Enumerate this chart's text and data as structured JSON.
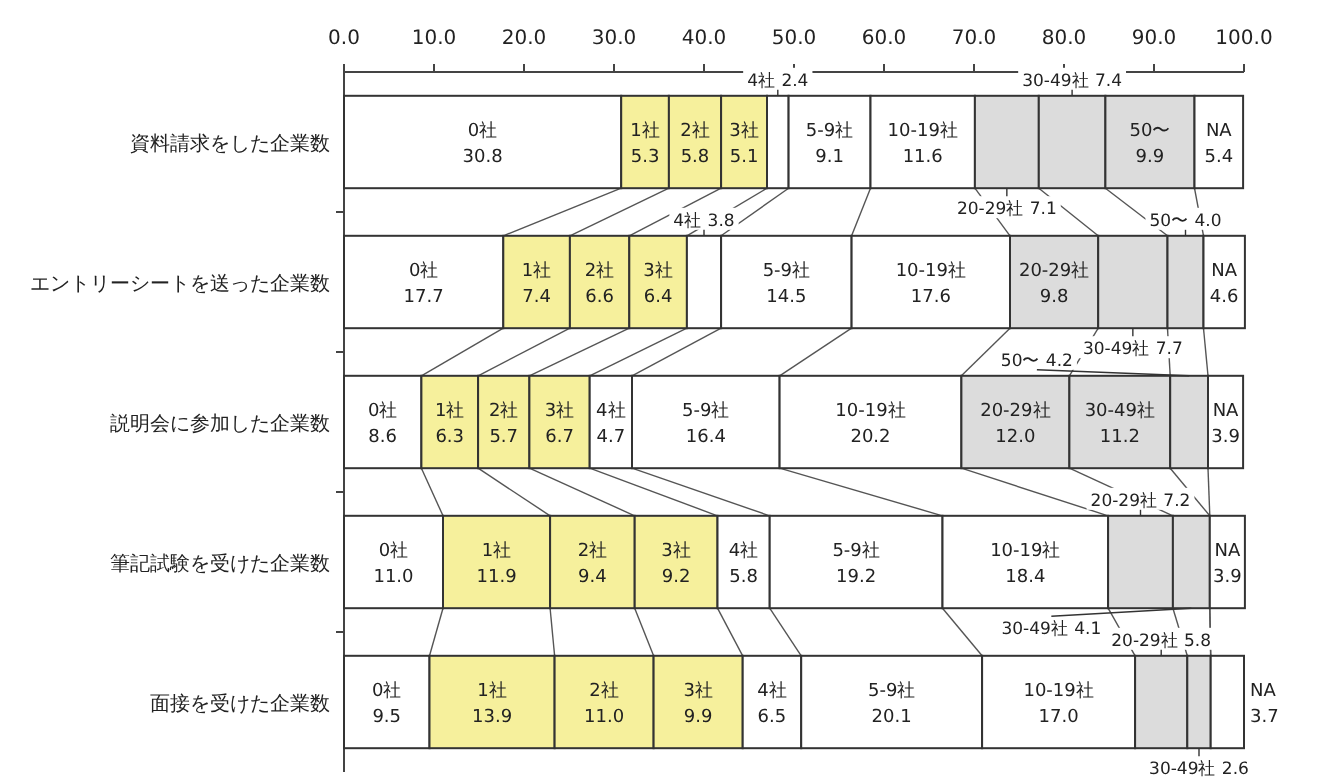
{
  "chart_data": {
    "type": "bar",
    "orientation": "horizontal",
    "stacked": true,
    "data_labels": true,
    "categories": [
      "資料請求をした企業数",
      "エントリーシートを送った企業数",
      "説明会に参加した企業数",
      "筆記試験を受けた企業数",
      "面接を受けた企業数"
    ],
    "xlim": [
      0,
      100
    ],
    "xticks": [
      {
        "value": 0,
        "label": "0.0"
      },
      {
        "value": 10,
        "label": "10.0"
      },
      {
        "value": 20,
        "label": "20.0"
      },
      {
        "value": 30,
        "label": "30.0"
      },
      {
        "value": 40,
        "label": "40.0"
      },
      {
        "value": 50,
        "label": "50.0"
      },
      {
        "value": 60,
        "label": "60.0"
      },
      {
        "value": 70,
        "label": "70.0"
      },
      {
        "value": 80,
        "label": "80.0"
      },
      {
        "value": 90,
        "label": "90.0"
      },
      {
        "value": 100,
        "label": "100.0"
      }
    ],
    "series": [
      {
        "name": "0社",
        "color": "#ffffff",
        "values": [
          30.8,
          17.7,
          8.6,
          11.0,
          9.5
        ],
        "value_labels": [
          "30.8",
          "17.7",
          "8.6",
          "11.0",
          "9.5"
        ]
      },
      {
        "name": "1社",
        "color": "#f6f09c",
        "values": [
          5.3,
          7.4,
          6.3,
          11.9,
          13.9
        ],
        "value_labels": [
          "5.3",
          "7.4",
          "6.3",
          "11.9",
          "13.9"
        ]
      },
      {
        "name": "2社",
        "color": "#f6f09c",
        "values": [
          5.8,
          6.6,
          5.7,
          9.4,
          11.0
        ],
        "value_labels": [
          "5.8",
          "6.6",
          "5.7",
          "9.4",
          "11.0"
        ]
      },
      {
        "name": "3社",
        "color": "#f6f09c",
        "values": [
          5.1,
          6.4,
          6.7,
          9.2,
          9.9
        ],
        "value_labels": [
          "5.1",
          "6.4",
          "6.7",
          "9.2",
          "9.9"
        ]
      },
      {
        "name": "4社",
        "color": "#ffffff",
        "values": [
          2.4,
          3.8,
          4.7,
          5.8,
          6.5
        ],
        "value_labels": [
          "2.4",
          "3.8",
          "4.7",
          "5.8",
          "6.5"
        ]
      },
      {
        "name": "5-9社",
        "color": "#ffffff",
        "values": [
          9.1,
          14.5,
          16.4,
          19.2,
          20.1
        ],
        "value_labels": [
          "9.1",
          "14.5",
          "16.4",
          "19.2",
          "20.1"
        ]
      },
      {
        "name": "10-19社",
        "color": "#ffffff",
        "values": [
          11.6,
          17.6,
          20.2,
          18.4,
          17.0
        ],
        "value_labels": [
          "11.6",
          "17.6",
          "20.2",
          "18.4",
          "17.0"
        ]
      },
      {
        "name": "20-29社",
        "color": "#dcdcdc",
        "values": [
          7.1,
          9.8,
          12.0,
          7.2,
          5.8
        ],
        "value_labels": [
          "7.1",
          "9.8",
          "12.0",
          "7.2",
          "5.8"
        ]
      },
      {
        "name": "30-49社",
        "color": "#dcdcdc",
        "values": [
          7.4,
          7.7,
          11.2,
          4.1,
          2.6
        ],
        "value_labels": [
          "7.4",
          "7.7",
          "11.2",
          "4.1",
          "2.6"
        ]
      },
      {
        "name": "50〜",
        "color": "#dcdcdc",
        "values": [
          9.9,
          4.0,
          4.2,
          null,
          null
        ],
        "value_labels": [
          "9.9",
          "4.0",
          "4.2",
          null,
          null
        ]
      },
      {
        "name": "NA",
        "color": "#ffffff",
        "values": [
          5.4,
          4.6,
          3.9,
          3.9,
          3.7
        ],
        "value_labels": [
          "5.4",
          "4.6",
          "3.9",
          "3.9",
          "3.7"
        ]
      }
    ]
  }
}
